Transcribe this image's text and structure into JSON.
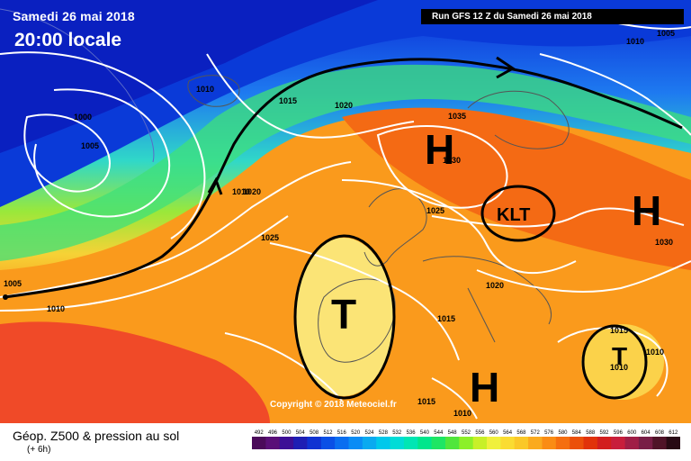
{
  "header": {
    "date": "Samedi 26 mai 2018",
    "time": "20:00 locale",
    "run": "Run GFS 12 Z du Samedi 26 mai 2018"
  },
  "map": {
    "copyright": "Copyright © 2018 Meteociel.fr",
    "pressure_labels": [
      "1005",
      "1010",
      "1000",
      "1005",
      "1010",
      "1015",
      "1010",
      "1020",
      "1020",
      "1025",
      "1035",
      "1030",
      "1025",
      "1020",
      "1015",
      "1030",
      "1015",
      "1010",
      "1010",
      "1015",
      "1010",
      "1005"
    ],
    "systems": [
      {
        "letter": "H",
        "color": "#000000"
      },
      {
        "letter": "H",
        "color": "#000000"
      },
      {
        "letter": "H",
        "color": "#000000"
      },
      {
        "letter": "T",
        "color": "#000000"
      },
      {
        "letter": "T",
        "color": "#000000"
      },
      {
        "letter": "KLT",
        "color": "#000000"
      }
    ],
    "jet_stream_color": "#000000"
  },
  "legend": {
    "title": "Géop. Z500 & pression au sol",
    "subtitle": "(+ 6h)",
    "scale_values": [
      "492",
      "496",
      "500",
      "504",
      "508",
      "512",
      "516",
      "520",
      "524",
      "528",
      "532",
      "536",
      "540",
      "544",
      "548",
      "552",
      "556",
      "560",
      "564",
      "568",
      "572",
      "576",
      "580",
      "584",
      "588",
      "592",
      "596",
      "600",
      "604",
      "608",
      "612"
    ],
    "scale_colors": [
      "#4b0a5a",
      "#5a0f78",
      "#3c0f96",
      "#1e1eb4",
      "#0f32d2",
      "#0a50e6",
      "#0a6ef0",
      "#0a8cf5",
      "#0aaaf0",
      "#00c8eb",
      "#00dcd7",
      "#00e6b4",
      "#00e68c",
      "#1ee664",
      "#50e63c",
      "#8cf028",
      "#c8f028",
      "#f0f03c",
      "#fadc32",
      "#fac828",
      "#faaa1e",
      "#fa8c14",
      "#f56e0f",
      "#eb500a",
      "#e1320a",
      "#d21e1e",
      "#c81e3c",
      "#a01e46",
      "#781e46",
      "#501428",
      "#280a14"
    ]
  }
}
